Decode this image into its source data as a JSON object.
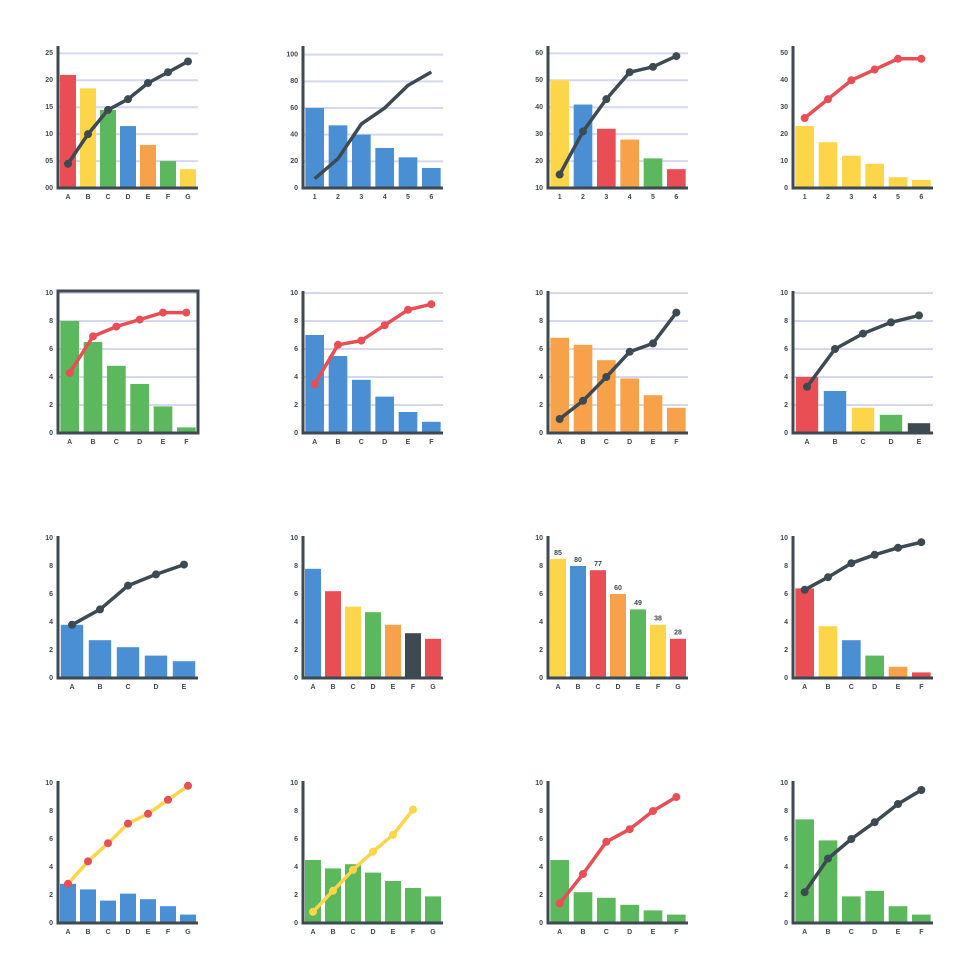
{
  "chart_data": [
    {
      "type": "combo",
      "categories": [
        "A",
        "B",
        "C",
        "D",
        "E",
        "F",
        "G"
      ],
      "ylim": [
        0,
        26
      ],
      "yticks": [
        {
          "value": 0,
          "label": "00"
        },
        {
          "value": 5,
          "label": "05"
        },
        10,
        15,
        20,
        25
      ],
      "grid": true,
      "bars": {
        "values": [
          21,
          18.5,
          14.5,
          11.5,
          8,
          5,
          3.5
        ],
        "colors": [
          "#e84e54",
          "#fdd548",
          "#5cb85c",
          "#4a8fd4",
          "#f7a24a",
          "#5cb85c",
          "#fdd548"
        ]
      },
      "line": {
        "color": "#3d4a52",
        "marker_color": "#3d4a52",
        "markers": true,
        "values": [
          4.5,
          10,
          14.5,
          16.5,
          19.5,
          21.5,
          23.5
        ]
      }
    },
    {
      "type": "combo",
      "categories": [
        "1",
        "2",
        "3",
        "4",
        "5",
        "6"
      ],
      "ylim": [
        0,
        105
      ],
      "yticks": [
        0,
        20,
        40,
        60,
        80,
        100
      ],
      "grid": true,
      "bars": {
        "values": [
          60,
          47,
          40,
          30,
          23,
          15
        ],
        "colors": [
          "#4a8fd4",
          "#4a8fd4",
          "#4a8fd4",
          "#4a8fd4",
          "#4a8fd4",
          "#4a8fd4"
        ]
      },
      "line": {
        "color": "#3d4a52",
        "marker_color": "#3d4a52",
        "markers": false,
        "values": [
          7,
          22,
          48,
          60,
          77,
          87
        ]
      }
    },
    {
      "type": "combo",
      "categories": [
        "1",
        "2",
        "3",
        "4",
        "5",
        "6"
      ],
      "ylim": [
        10,
        62
      ],
      "yticks": [
        10,
        20,
        30,
        40,
        50,
        60
      ],
      "grid": true,
      "bars": {
        "values": [
          50,
          41,
          32,
          28,
          21,
          17
        ],
        "colors": [
          "#fdd548",
          "#4a8fd4",
          "#e84e54",
          "#f7a24a",
          "#5cb85c",
          "#e84e54"
        ]
      },
      "line": {
        "color": "#3d4a52",
        "marker_color": "#3d4a52",
        "markers": true,
        "values": [
          15,
          31,
          43,
          53,
          55,
          59
        ]
      }
    },
    {
      "type": "combo",
      "categories": [
        "1",
        "2",
        "3",
        "4",
        "5",
        "6"
      ],
      "ylim": [
        0,
        52
      ],
      "yticks": [
        0,
        10,
        20,
        30,
        40,
        50
      ],
      "grid": false,
      "bars": {
        "values": [
          23,
          17,
          12,
          9,
          4,
          3
        ],
        "colors": [
          "#fdd548",
          "#fdd548",
          "#fdd548",
          "#fdd548",
          "#fdd548",
          "#fdd548"
        ]
      },
      "line": {
        "color": "#e84e54",
        "marker_color": "#e84e54",
        "markers": true,
        "values": [
          26,
          33,
          40,
          44,
          48,
          48
        ]
      }
    },
    {
      "type": "combo",
      "categories": [
        "A",
        "B",
        "C",
        "D",
        "E",
        "F"
      ],
      "ylim": [
        0,
        10
      ],
      "yticks": [
        0,
        2,
        4,
        6,
        8,
        10
      ],
      "grid": true,
      "frame": true,
      "bars": {
        "values": [
          8,
          6.5,
          4.8,
          3.5,
          1.9,
          0.4
        ],
        "colors": [
          "#5cb85c",
          "#5cb85c",
          "#5cb85c",
          "#5cb85c",
          "#5cb85c",
          "#5cb85c"
        ]
      },
      "line": {
        "color": "#e84e54",
        "marker_color": "#e84e54",
        "markers": true,
        "values": [
          4.3,
          6.9,
          7.6,
          8.1,
          8.6,
          8.6
        ]
      }
    },
    {
      "type": "combo",
      "categories": [
        "A",
        "B",
        "C",
        "D",
        "E",
        "F"
      ],
      "ylim": [
        0,
        10
      ],
      "yticks": [
        0,
        2,
        4,
        6,
        8,
        10
      ],
      "grid": true,
      "bars": {
        "values": [
          7,
          5.5,
          3.8,
          2.6,
          1.5,
          0.8
        ],
        "colors": [
          "#4a8fd4",
          "#4a8fd4",
          "#4a8fd4",
          "#4a8fd4",
          "#4a8fd4",
          "#4a8fd4"
        ]
      },
      "line": {
        "color": "#e84e54",
        "marker_color": "#e84e54",
        "markers": true,
        "values": [
          3.5,
          6.3,
          6.6,
          7.7,
          8.8,
          9.2
        ]
      }
    },
    {
      "type": "combo",
      "categories": [
        "A",
        "B",
        "C",
        "D",
        "E",
        "F"
      ],
      "ylim": [
        0,
        10
      ],
      "yticks": [
        0,
        2,
        4,
        6,
        8,
        10
      ],
      "grid": true,
      "bars": {
        "values": [
          6.8,
          6.3,
          5.2,
          3.9,
          2.7,
          1.8
        ],
        "colors": [
          "#f7a24a",
          "#f7a24a",
          "#f7a24a",
          "#f7a24a",
          "#f7a24a",
          "#f7a24a"
        ]
      },
      "line": {
        "color": "#3d4a52",
        "marker_color": "#3d4a52",
        "markers": true,
        "values": [
          1,
          2.3,
          4,
          5.8,
          6.4,
          8.6
        ]
      }
    },
    {
      "type": "combo",
      "categories": [
        "A",
        "B",
        "C",
        "D",
        "E"
      ],
      "ylim": [
        0,
        10
      ],
      "yticks": [
        0,
        2,
        4,
        6,
        8,
        10
      ],
      "grid": true,
      "bars": {
        "values": [
          4,
          3,
          1.8,
          1.3,
          0.7
        ],
        "colors": [
          "#e84e54",
          "#4a8fd4",
          "#fdd548",
          "#5cb85c",
          "#3d4a52"
        ]
      },
      "line": {
        "color": "#3d4a52",
        "marker_color": "#3d4a52",
        "markers": true,
        "values": [
          3.3,
          6,
          7.1,
          7.9,
          8.4
        ]
      }
    },
    {
      "type": "combo",
      "categories": [
        "A",
        "B",
        "C",
        "D",
        "E"
      ],
      "ylim": [
        0,
        10
      ],
      "yticks": [
        0,
        2,
        4,
        6,
        8,
        10
      ],
      "grid": false,
      "bars": {
        "values": [
          3.8,
          2.7,
          2.2,
          1.6,
          1.2
        ],
        "colors": [
          "#4a8fd4",
          "#4a8fd4",
          "#4a8fd4",
          "#4a8fd4",
          "#4a8fd4"
        ]
      },
      "line": {
        "color": "#3d4a52",
        "marker_color": "#3d4a52",
        "markers": true,
        "values": [
          3.8,
          4.9,
          6.6,
          7.4,
          8.1
        ]
      }
    },
    {
      "type": "bar",
      "categories": [
        "A",
        "B",
        "C",
        "D",
        "E",
        "F",
        "G"
      ],
      "ylim": [
        0,
        10
      ],
      "yticks": [
        0,
        2,
        4,
        6,
        8,
        10
      ],
      "grid": false,
      "bars": {
        "values": [
          7.8,
          6.2,
          5.1,
          4.7,
          3.8,
          3.2,
          2.8
        ],
        "colors": [
          "#4a8fd4",
          "#e84e54",
          "#fdd548",
          "#5cb85c",
          "#f7a24a",
          "#3d4a52",
          "#e84e54"
        ]
      }
    },
    {
      "type": "bar",
      "categories": [
        "A",
        "B",
        "C",
        "D",
        "E",
        "F",
        "G"
      ],
      "ylim": [
        0,
        100
      ],
      "yticks": [
        {
          "value": 0,
          "label": "0"
        },
        {
          "value": 20,
          "label": "2"
        },
        {
          "value": 40,
          "label": "4"
        },
        {
          "value": 60,
          "label": "6"
        },
        {
          "value": 80,
          "label": "8"
        },
        {
          "value": 100,
          "label": "10"
        }
      ],
      "grid": false,
      "data_labels": true,
      "bars": {
        "values": [
          85,
          80,
          77,
          60,
          49,
          38,
          28
        ],
        "colors": [
          "#fdd548",
          "#4a8fd4",
          "#e84e54",
          "#f7a24a",
          "#5cb85c",
          "#fdd548",
          "#e84e54"
        ]
      }
    },
    {
      "type": "combo",
      "categories": [
        "A",
        "B",
        "C",
        "D",
        "E",
        "F"
      ],
      "ylim": [
        0,
        10
      ],
      "yticks": [
        0,
        2,
        4,
        6,
        8,
        10
      ],
      "grid": false,
      "bars": {
        "values": [
          6.4,
          3.7,
          2.7,
          1.6,
          0.8,
          0.4
        ],
        "colors": [
          "#e84e54",
          "#fdd548",
          "#4a8fd4",
          "#5cb85c",
          "#f7a24a",
          "#e84e54"
        ]
      },
      "line": {
        "color": "#3d4a52",
        "marker_color": "#3d4a52",
        "markers": true,
        "values": [
          6.3,
          7.2,
          8.2,
          8.8,
          9.3,
          9.7
        ]
      }
    },
    {
      "type": "combo",
      "categories": [
        "A",
        "B",
        "C",
        "D",
        "E",
        "F",
        "G"
      ],
      "ylim": [
        0,
        10
      ],
      "yticks": [
        0,
        2,
        4,
        6,
        8,
        10
      ],
      "grid": false,
      "bars": {
        "values": [
          2.8,
          2.4,
          1.6,
          2.1,
          1.7,
          1.2,
          0.6
        ],
        "colors": [
          "#4a8fd4",
          "#4a8fd4",
          "#4a8fd4",
          "#4a8fd4",
          "#4a8fd4",
          "#4a8fd4",
          "#4a8fd4"
        ]
      },
      "line": {
        "color": "#fdd548",
        "marker_color": "#e84e54",
        "markers": true,
        "values": [
          2.8,
          4.4,
          5.7,
          7.1,
          7.8,
          8.8,
          9.8
        ]
      }
    },
    {
      "type": "combo",
      "categories": [
        "A",
        "B",
        "C",
        "D",
        "E",
        "F",
        "G"
      ],
      "ylim": [
        0,
        10
      ],
      "yticks": [
        0,
        2,
        4,
        6,
        8,
        10
      ],
      "grid": false,
      "bars": {
        "values": [
          4.5,
          3.9,
          4.2,
          3.6,
          3,
          2.5,
          1.9
        ],
        "colors": [
          "#5cb85c",
          "#5cb85c",
          "#5cb85c",
          "#5cb85c",
          "#5cb85c",
          "#5cb85c",
          "#5cb85c"
        ]
      },
      "line": {
        "color": "#fdd548",
        "marker_color": "#fdd548",
        "markers": true,
        "values": [
          0.8,
          2.3,
          3.8,
          5.1,
          6.3,
          8.1,
          null
        ]
      }
    },
    {
      "type": "combo",
      "categories": [
        "A",
        "B",
        "C",
        "D",
        "E",
        "F"
      ],
      "ylim": [
        0,
        10
      ],
      "yticks": [
        0,
        2,
        4,
        6,
        8,
        10
      ],
      "grid": false,
      "bars": {
        "values": [
          4.5,
          2.2,
          1.8,
          1.3,
          0.9,
          0.6
        ],
        "colors": [
          "#5cb85c",
          "#5cb85c",
          "#5cb85c",
          "#5cb85c",
          "#5cb85c",
          "#5cb85c"
        ]
      },
      "line": {
        "color": "#e84e54",
        "marker_color": "#e84e54",
        "markers": true,
        "values": [
          1.4,
          3.5,
          5.8,
          6.7,
          8,
          9
        ]
      }
    },
    {
      "type": "combo",
      "categories": [
        "A",
        "B",
        "C",
        "D",
        "E",
        "F"
      ],
      "ylim": [
        0,
        10
      ],
      "yticks": [
        0,
        2,
        4,
        6,
        8,
        10
      ],
      "grid": false,
      "bars": {
        "values": [
          7.4,
          5.9,
          1.9,
          2.3,
          1.2,
          0.6
        ],
        "colors": [
          "#5cb85c",
          "#5cb85c",
          "#5cb85c",
          "#5cb85c",
          "#5cb85c",
          "#5cb85c"
        ]
      },
      "line": {
        "color": "#3d4a52",
        "marker_color": "#3d4a52",
        "markers": true,
        "values": [
          2.2,
          4.6,
          6,
          7.2,
          8.5,
          9.5
        ]
      }
    }
  ]
}
